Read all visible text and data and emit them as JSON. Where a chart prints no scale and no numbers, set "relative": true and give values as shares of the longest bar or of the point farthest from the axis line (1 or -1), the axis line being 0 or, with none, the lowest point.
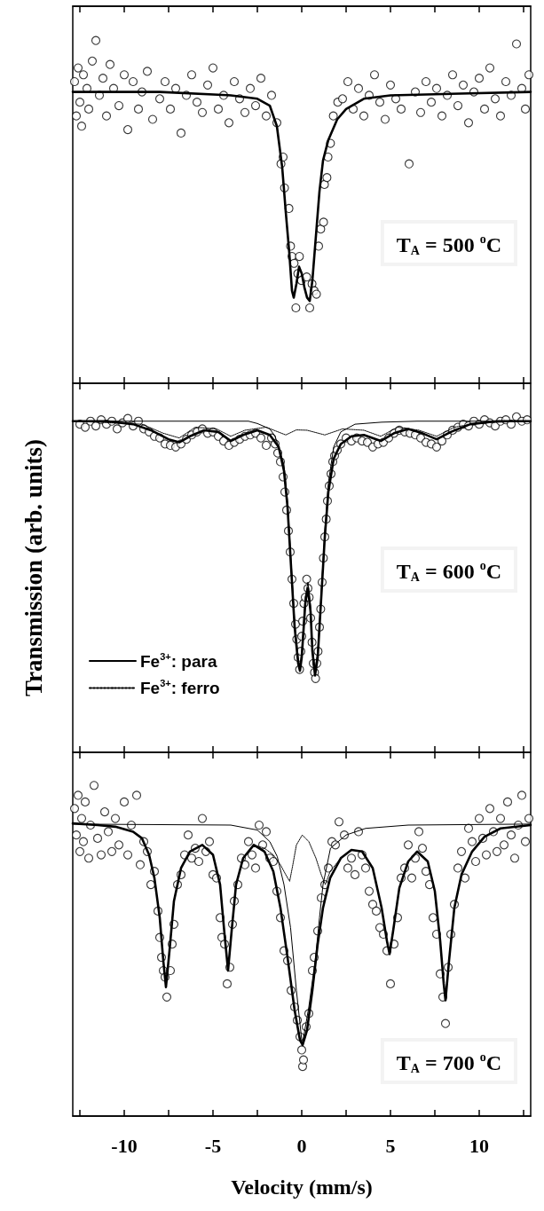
{
  "chart_data": [
    {
      "type": "scatter",
      "relative": true,
      "tick_labels": false,
      "xlim": [
        -12.9,
        12.9
      ],
      "xticks": [
        {
          "value": -12.5,
          "label": null
        },
        -10,
        {
          "value": -7.5,
          "label": null
        },
        -5,
        {
          "value": -2.5,
          "label": null
        },
        0,
        {
          "value": 2.5,
          "label": null
        },
        5,
        {
          "value": 7.5,
          "label": null
        },
        10,
        {
          "value": 12.5,
          "label": null
        }
      ],
      "annotations": [
        "T$_{A}$ = 500 $^{o}$C"
      ],
      "series": [
        {
          "marker": "circle",
          "color": "#000000",
          "x": [
            -12.8,
            -12.7,
            -12.6,
            -12.5,
            -12.4,
            -12.3,
            -12.1,
            -12.0,
            -11.8,
            -11.6,
            -11.4,
            -11.2,
            -11.0,
            -10.8,
            -10.6,
            -10.3,
            -10.0,
            -9.8,
            -9.5,
            -9.2,
            -9.0,
            -8.7,
            -8.4,
            -8.0,
            -7.7,
            -7.4,
            -7.1,
            -6.8,
            -6.5,
            -6.2,
            -5.9,
            -5.6,
            -5.3,
            -5.0,
            -4.7,
            -4.4,
            -4.1,
            -3.8,
            -3.5,
            -3.2,
            -2.9,
            -2.6,
            -2.3,
            -2.0,
            -1.7,
            -1.4,
            -1.17,
            -1.05,
            -0.97,
            -0.72,
            -0.63,
            -0.55,
            -0.43,
            -0.33,
            -0.22,
            -0.13,
            -0.02,
            0.28,
            0.45,
            0.58,
            0.7,
            0.83,
            0.95,
            1.07,
            1.23,
            1.28,
            1.42,
            1.48,
            1.62,
            1.78,
            2.03,
            2.3,
            2.6,
            2.9,
            3.2,
            3.5,
            3.8,
            4.1,
            4.4,
            4.7,
            5.0,
            5.3,
            5.6,
            6.05,
            6.4,
            6.7,
            7.0,
            7.3,
            7.6,
            7.9,
            8.2,
            8.5,
            8.8,
            9.1,
            9.4,
            9.7,
            10.0,
            10.3,
            10.6,
            10.9,
            11.2,
            11.5,
            11.8,
            12.1,
            12.4,
            12.6,
            12.8
          ],
          "values": [
            0.88,
            0.78,
            0.92,
            0.82,
            0.75,
            0.9,
            0.86,
            0.8,
            0.94,
            1.0,
            0.84,
            0.89,
            0.78,
            0.93,
            0.86,
            0.81,
            0.9,
            0.74,
            0.88,
            0.8,
            0.85,
            0.91,
            0.77,
            0.83,
            0.88,
            0.8,
            0.86,
            0.73,
            0.84,
            0.9,
            0.82,
            0.79,
            0.87,
            0.92,
            0.8,
            0.84,
            0.76,
            0.88,
            0.83,
            0.79,
            0.86,
            0.81,
            0.89,
            0.78,
            0.84,
            0.76,
            0.64,
            0.66,
            0.57,
            0.51,
            0.4,
            0.37,
            0.35,
            0.22,
            0.32,
            0.37,
            0.3,
            0.31,
            0.22,
            0.29,
            0.27,
            0.26,
            0.4,
            0.45,
            0.47,
            0.58,
            0.6,
            0.66,
            0.7,
            0.78,
            0.82,
            0.83,
            0.88,
            0.8,
            0.86,
            0.78,
            0.84,
            0.9,
            0.82,
            0.77,
            0.87,
            0.83,
            0.8,
            0.64,
            0.85,
            0.79,
            0.88,
            0.82,
            0.86,
            0.78,
            0.84,
            0.9,
            0.81,
            0.87,
            0.76,
            0.85,
            0.89,
            0.8,
            0.92,
            0.83,
            0.78,
            0.88,
            0.84,
            0.99,
            0.86,
            0.8,
            0.9
          ]
        },
        {
          "type": "line",
          "marker": "none",
          "color": "#000000",
          "x": [
            -12.9,
            -8,
            -4,
            -2.5,
            -1.8,
            -1.4,
            -1.1,
            -0.9,
            -0.7,
            -0.55,
            -0.45,
            -0.3,
            -0.15,
            0.0,
            0.15,
            0.3,
            0.45,
            0.6,
            0.8,
            1.0,
            1.2,
            1.5,
            2.0,
            2.5,
            3.5,
            5,
            12.9
          ],
          "values": [
            0.85,
            0.85,
            0.84,
            0.83,
            0.81,
            0.75,
            0.63,
            0.5,
            0.38,
            0.27,
            0.25,
            0.29,
            0.34,
            0.32,
            0.28,
            0.25,
            0.24,
            0.3,
            0.43,
            0.56,
            0.65,
            0.71,
            0.77,
            0.8,
            0.83,
            0.84,
            0.85
          ]
        }
      ]
    },
    {
      "type": "scatter",
      "relative": true,
      "tick_labels": false,
      "legend": "bottom left",
      "ylabel": "Transmission (arb. units)",
      "xlim": [
        -12.9,
        12.9
      ],
      "xticks": [
        {
          "value": -12.5,
          "label": null
        },
        -10,
        {
          "value": -7.5,
          "label": null
        },
        -5,
        {
          "value": -2.5,
          "label": null
        },
        0,
        {
          "value": 2.5,
          "label": null
        },
        5,
        {
          "value": 7.5,
          "label": null
        },
        10,
        {
          "value": 12.5,
          "label": null
        }
      ],
      "annotations": [
        "T$_{A}$ = 600 $^{o}$C"
      ],
      "series": [
        {
          "marker": "circle",
          "color": "#000000",
          "x": [
            -12.5,
            -12.2,
            -11.9,
            -11.6,
            -11.3,
            -11.0,
            -10.7,
            -10.4,
            -10.1,
            -9.8,
            -9.5,
            -9.2,
            -8.9,
            -8.6,
            -8.3,
            -8.0,
            -7.7,
            -7.4,
            -7.1,
            -6.8,
            -6.5,
            -6.2,
            -5.9,
            -5.6,
            -5.3,
            -5.0,
            -4.7,
            -4.4,
            -4.1,
            -3.8,
            -3.5,
            -3.2,
            -2.9,
            -2.6,
            -2.3,
            -2.0,
            -1.7,
            -1.5,
            -1.35,
            -1.2,
            -1.05,
            -0.95,
            -0.85,
            -0.75,
            -0.65,
            -0.55,
            -0.45,
            -0.35,
            -0.28,
            -0.2,
            -0.12,
            -0.05,
            0,
            0.05,
            0.12,
            0.2,
            0.28,
            0.35,
            0.42,
            0.5,
            0.58,
            0.65,
            0.72,
            0.78,
            0.85,
            0.92,
            1.0,
            1.07,
            1.15,
            1.22,
            1.3,
            1.38,
            1.45,
            1.55,
            1.65,
            1.75,
            1.85,
            2.0,
            2.2,
            2.5,
            2.8,
            3.1,
            3.4,
            3.7,
            4.0,
            4.3,
            4.6,
            4.9,
            5.2,
            5.5,
            5.8,
            6.1,
            6.4,
            6.7,
            7.0,
            7.3,
            7.6,
            7.9,
            8.2,
            8.5,
            8.8,
            9.1,
            9.4,
            9.7,
            10.0,
            10.3,
            10.6,
            10.9,
            11.2,
            11.5,
            11.8,
            12.1,
            12.4,
            12.7
          ],
          "values": [
            0.978,
            0.969,
            0.987,
            0.973,
            0.991,
            0.978,
            0.987,
            0.964,
            0.982,
            0.995,
            0.973,
            0.987,
            0.964,
            0.955,
            0.942,
            0.937,
            0.919,
            0.915,
            0.91,
            0.919,
            0.933,
            0.946,
            0.955,
            0.964,
            0.951,
            0.955,
            0.942,
            0.928,
            0.915,
            0.924,
            0.933,
            0.942,
            0.946,
            0.951,
            0.937,
            0.915,
            0.937,
            0.919,
            0.892,
            0.866,
            0.821,
            0.776,
            0.722,
            0.66,
            0.597,
            0.516,
            0.444,
            0.382,
            0.337,
            0.283,
            0.247,
            0.301,
            0.346,
            0.391,
            0.444,
            0.462,
            0.516,
            0.489,
            0.462,
            0.4,
            0.328,
            0.265,
            0.238,
            0.22,
            0.265,
            0.301,
            0.373,
            0.427,
            0.507,
            0.579,
            0.642,
            0.695,
            0.749,
            0.794,
            0.83,
            0.866,
            0.884,
            0.901,
            0.919,
            0.937,
            0.928,
            0.937,
            0.928,
            0.924,
            0.91,
            0.919,
            0.924,
            0.937,
            0.951,
            0.96,
            0.955,
            0.951,
            0.946,
            0.937,
            0.924,
            0.919,
            0.91,
            0.928,
            0.946,
            0.96,
            0.969,
            0.978,
            0.973,
            0.987,
            0.978,
            0.991,
            0.982,
            0.973,
            0.987,
            0.991,
            0.978,
            1.0,
            0.987,
            0.991
          ]
        },
        {
          "type": "line",
          "marker": "none",
          "color": "#000000",
          "x": [
            -12.9,
            -11,
            -9.5,
            -8.5,
            -7.5,
            -6.9,
            -6.3,
            -5.5,
            -4.7,
            -4.0,
            -3.3,
            -2.5,
            -1.8,
            -1.3,
            -1.0,
            -0.8,
            -0.6,
            -0.4,
            -0.2,
            -0.1,
            0.0,
            0.2,
            0.35,
            0.5,
            0.6,
            0.75,
            0.9,
            1.1,
            1.3,
            1.5,
            1.8,
            2.2,
            2.8,
            3.5,
            4.45,
            5.2,
            6.0,
            6.8,
            7.6,
            8.4,
            9.5,
            11,
            12.9
          ],
          "values": [
            0.987,
            0.987,
            0.978,
            0.96,
            0.933,
            0.924,
            0.942,
            0.96,
            0.955,
            0.928,
            0.946,
            0.96,
            0.946,
            0.91,
            0.839,
            0.731,
            0.552,
            0.373,
            0.265,
            0.243,
            0.283,
            0.444,
            0.489,
            0.418,
            0.301,
            0.229,
            0.283,
            0.462,
            0.642,
            0.776,
            0.875,
            0.919,
            0.942,
            0.946,
            0.928,
            0.951,
            0.964,
            0.951,
            0.933,
            0.955,
            0.978,
            0.987,
            0.987
          ]
        },
        {
          "type": "line",
          "marker": "none",
          "color": "#000000",
          "name": "Fe$^{3+}$: para",
          "x": [
            -12.9,
            -3,
            -2.5,
            -1.8,
            -1.5,
            -1.2,
            -1.0,
            -0.8,
            -0.6,
            -0.4,
            -0.2,
            -0.1,
            0,
            0.2,
            0.35,
            0.5,
            0.6,
            0.75,
            0.9,
            1.1,
            1.3,
            1.5,
            1.8,
            2.2,
            3,
            4.5,
            6.5,
            12.9
          ],
          "values": [
            0.987,
            0.987,
            0.98,
            0.964,
            0.942,
            0.892,
            0.857,
            0.749,
            0.57,
            0.391,
            0.283,
            0.256,
            0.301,
            0.462,
            0.507,
            0.436,
            0.319,
            0.247,
            0.301,
            0.48,
            0.66,
            0.803,
            0.91,
            0.955,
            0.978,
            0.984,
            0.987,
            0.987
          ]
        },
        {
          "type": "line",
          "marker": "none",
          "line_style": "dotted",
          "color": "#000000",
          "name": "Fe$^{3+}$: ferro",
          "x": [
            -12.9,
            -9,
            -7.8,
            -6.9,
            -6.0,
            -4.8,
            -4.0,
            -3.2,
            -2.0,
            -0.9,
            -0.3,
            0.3,
            1.3,
            2.3,
            3.5,
            4.45,
            5.4,
            6.6,
            7.6,
            8.6,
            10,
            12.9
          ],
          "values": [
            0.987,
            0.978,
            0.951,
            0.937,
            0.969,
            0.964,
            0.942,
            0.96,
            0.969,
            0.946,
            0.961,
            0.96,
            0.946,
            0.964,
            0.96,
            0.942,
            0.969,
            0.96,
            0.942,
            0.969,
            0.982,
            0.987
          ]
        }
      ]
    },
    {
      "type": "scatter",
      "relative": true,
      "tick_labels": "x",
      "xlabel": "Velocity (mm/s)",
      "xlim": [
        -12.9,
        12.9
      ],
      "xticks": [
        {
          "value": -12.5,
          "label": null
        },
        -10,
        {
          "value": -7.5,
          "label": null
        },
        -5,
        {
          "value": -2.5,
          "label": null
        },
        0,
        {
          "value": 2.5,
          "label": null
        },
        5,
        {
          "value": 7.5,
          "label": null
        },
        10,
        {
          "value": 12.5,
          "label": null
        }
      ],
      "annotations": [
        "T$_{A}$ = 700 $^{o}$C"
      ],
      "series": [
        {
          "marker": "circle",
          "color": "#000000",
          "x": [
            -12.8,
            -12.7,
            -12.6,
            -12.5,
            -12.4,
            -12.3,
            -12.2,
            -12.0,
            -11.9,
            -11.7,
            -11.5,
            -11.3,
            -11.1,
            -10.9,
            -10.7,
            -10.5,
            -10.3,
            -10.0,
            -9.8,
            -9.6,
            -9.3,
            -9.1,
            -8.9,
            -8.7,
            -8.5,
            -8.3,
            -8.1,
            -8.0,
            -7.9,
            -7.8,
            -7.7,
            -7.6,
            -7.4,
            -7.3,
            -7.2,
            -7.0,
            -6.8,
            -6.6,
            -6.4,
            -6.2,
            -6.0,
            -5.8,
            -5.6,
            -5.4,
            -5.2,
            -5.0,
            -4.8,
            -4.6,
            -4.5,
            -4.35,
            -4.2,
            -4.05,
            -3.9,
            -3.8,
            -3.6,
            -3.4,
            -3.2,
            -3.0,
            -2.8,
            -2.6,
            -2.4,
            -2.2,
            -2.0,
            -1.8,
            -1.6,
            -1.4,
            -1.2,
            -1.0,
            -0.8,
            -0.6,
            -0.4,
            -0.25,
            -0.1,
            0,
            0.05,
            0.1,
            0.25,
            0.4,
            0.6,
            0.7,
            0.9,
            1.1,
            1.3,
            1.5,
            1.7,
            1.9,
            2.1,
            2.4,
            2.6,
            2.8,
            3.0,
            3.2,
            3.4,
            3.6,
            3.8,
            4.0,
            4.2,
            4.4,
            4.6,
            4.8,
            5.0,
            5.2,
            5.4,
            5.6,
            5.8,
            6.0,
            6.2,
            6.4,
            6.6,
            6.8,
            7.0,
            7.2,
            7.4,
            7.6,
            7.8,
            7.95,
            8.1,
            8.25,
            8.4,
            8.6,
            8.8,
            9.0,
            9.2,
            9.4,
            9.6,
            9.8,
            10.0,
            10.2,
            10.4,
            10.6,
            10.8,
            11.0,
            11.2,
            11.4,
            11.6,
            11.8,
            12.0,
            12.2,
            12.4,
            12.6,
            12.8
          ],
          "values": [
            0.93,
            0.85,
            0.97,
            0.8,
            0.9,
            0.83,
            0.95,
            0.78,
            0.88,
            1.0,
            0.84,
            0.79,
            0.92,
            0.86,
            0.8,
            0.9,
            0.82,
            0.95,
            0.79,
            0.88,
            0.97,
            0.76,
            0.83,
            0.8,
            0.7,
            0.74,
            0.62,
            0.54,
            0.48,
            0.44,
            0.42,
            0.36,
            0.44,
            0.52,
            0.58,
            0.7,
            0.73,
            0.79,
            0.85,
            0.78,
            0.81,
            0.77,
            0.9,
            0.8,
            0.83,
            0.73,
            0.72,
            0.6,
            0.54,
            0.52,
            0.4,
            0.45,
            0.58,
            0.65,
            0.7,
            0.78,
            0.76,
            0.83,
            0.79,
            0.75,
            0.88,
            0.82,
            0.86,
            0.78,
            0.77,
            0.68,
            0.6,
            0.5,
            0.47,
            0.38,
            0.33,
            0.29,
            0.24,
            0.2,
            0.15,
            0.17,
            0.27,
            0.31,
            0.44,
            0.48,
            0.56,
            0.66,
            0.7,
            0.75,
            0.83,
            0.82,
            0.89,
            0.85,
            0.75,
            0.78,
            0.73,
            0.86,
            0.79,
            0.75,
            0.68,
            0.64,
            0.62,
            0.57,
            0.55,
            0.5,
            0.4,
            0.52,
            0.6,
            0.72,
            0.75,
            0.82,
            0.72,
            0.78,
            0.86,
            0.81,
            0.74,
            0.7,
            0.6,
            0.55,
            0.43,
            0.36,
            0.28,
            0.45,
            0.55,
            0.64,
            0.75,
            0.8,
            0.72,
            0.87,
            0.83,
            0.77,
            0.9,
            0.84,
            0.79,
            0.93,
            0.86,
            0.8,
            0.9,
            0.82,
            0.95,
            0.85,
            0.78,
            0.88,
            0.97,
            0.83,
            0.9
          ]
        },
        {
          "type": "line",
          "marker": "none",
          "color": "#000000",
          "x": [
            -12.9,
            -11.5,
            -10.5,
            -9.5,
            -9.0,
            -8.6,
            -8.3,
            -8.0,
            -7.8,
            -7.65,
            -7.45,
            -7.2,
            -6.8,
            -6.3,
            -5.6,
            -5.0,
            -4.6,
            -4.35,
            -4.15,
            -3.95,
            -3.7,
            -3.3,
            -2.7,
            -2.1,
            -1.6,
            -1.2,
            -0.8,
            -0.4,
            -0.1,
            0.05,
            0.3,
            0.6,
            0.9,
            1.2,
            1.6,
            2.2,
            2.8,
            3.4,
            4.0,
            4.5,
            4.8,
            4.95,
            5.15,
            5.5,
            6.0,
            6.5,
            7.1,
            7.5,
            7.8,
            8.0,
            8.1,
            8.3,
            8.6,
            9.0,
            9.6,
            10.3,
            11.2,
            12.9
          ],
          "values": [
            0.885,
            0.88,
            0.875,
            0.86,
            0.84,
            0.79,
            0.72,
            0.6,
            0.47,
            0.39,
            0.5,
            0.65,
            0.75,
            0.8,
            0.82,
            0.79,
            0.7,
            0.55,
            0.44,
            0.56,
            0.7,
            0.78,
            0.82,
            0.8,
            0.74,
            0.63,
            0.48,
            0.32,
            0.23,
            0.215,
            0.26,
            0.38,
            0.52,
            0.63,
            0.72,
            0.78,
            0.805,
            0.8,
            0.75,
            0.63,
            0.53,
            0.49,
            0.56,
            0.69,
            0.77,
            0.8,
            0.77,
            0.68,
            0.53,
            0.4,
            0.35,
            0.47,
            0.63,
            0.73,
            0.8,
            0.845,
            0.87,
            0.88
          ]
        },
        {
          "type": "line",
          "marker": "none",
          "color": "#000000",
          "x": [
            -12.9,
            -4,
            -2.5,
            -1.8,
            -1.38,
            -1.0,
            -0.63,
            -0.3,
            0.03,
            0.4,
            0.78,
            1.0,
            1.2,
            1.62,
            2.5,
            3.6,
            6,
            12.9
          ],
          "values": [
            0.883,
            0.88,
            0.865,
            0.83,
            0.785,
            0.7,
            0.57,
            0.38,
            0.215,
            0.33,
            0.48,
            0.6,
            0.7,
            0.81,
            0.85,
            0.87,
            0.88,
            0.883
          ]
        },
        {
          "type": "line",
          "marker": "none",
          "line_style": "dotted",
          "color": "#000000",
          "x": [
            -12.9,
            -11.5,
            -10.5,
            -9.5,
            -9.0,
            -8.6,
            -8.3,
            -8.0,
            -7.8,
            -7.65,
            -7.45,
            -7.2,
            -6.8,
            -6.3,
            -5.6,
            -5.0,
            -4.6,
            -4.35,
            -4.15,
            -3.95,
            -3.7,
            -3.3,
            -2.7,
            -2.1,
            -1.6,
            -1.2,
            -0.9,
            -0.68,
            -0.5,
            -0.3,
            0.03,
            0.4,
            0.8,
            1.1,
            1.33,
            1.6,
            2.2,
            2.8,
            3.4,
            4.0,
            4.5,
            4.8,
            4.95,
            5.15,
            5.5,
            6.0,
            6.5,
            7.1,
            7.5,
            7.8,
            8.0,
            8.1,
            8.3,
            8.6,
            9.0,
            9.6,
            10.3,
            11.2,
            12.9
          ],
          "values": [
            0.885,
            0.88,
            0.875,
            0.86,
            0.84,
            0.79,
            0.72,
            0.6,
            0.47,
            0.39,
            0.5,
            0.65,
            0.75,
            0.8,
            0.82,
            0.79,
            0.7,
            0.55,
            0.44,
            0.56,
            0.7,
            0.78,
            0.82,
            0.81,
            0.79,
            0.76,
            0.73,
            0.71,
            0.76,
            0.82,
            0.85,
            0.83,
            0.78,
            0.73,
            0.7,
            0.74,
            0.78,
            0.805,
            0.8,
            0.75,
            0.63,
            0.53,
            0.49,
            0.56,
            0.69,
            0.77,
            0.8,
            0.77,
            0.68,
            0.53,
            0.4,
            0.35,
            0.47,
            0.63,
            0.73,
            0.8,
            0.845,
            0.87,
            0.88
          ]
        }
      ]
    }
  ]
}
